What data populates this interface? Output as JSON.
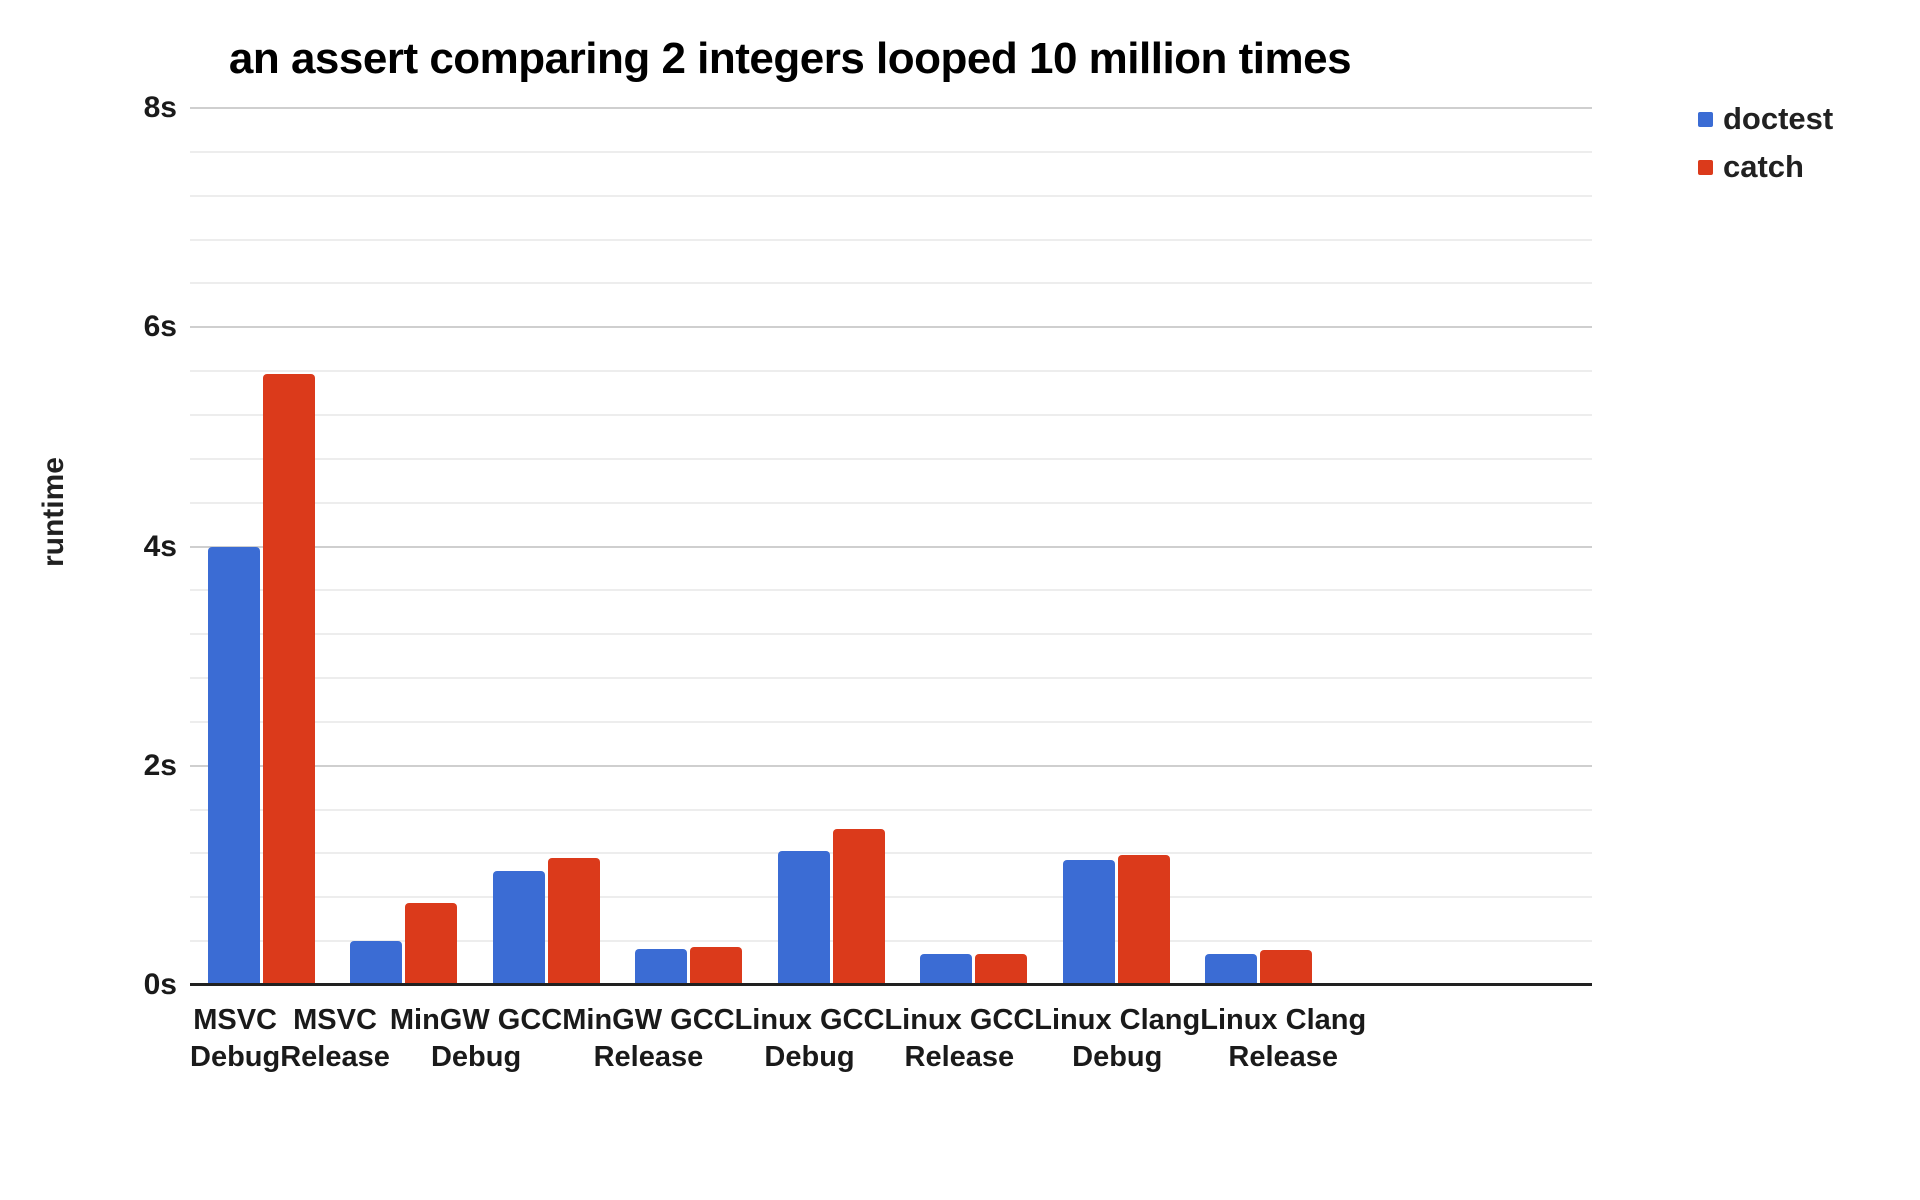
{
  "title": "an assert comparing 2 integers looped 10 million times",
  "y_axis_title": "runtime",
  "legend": [
    {
      "label": "doctest",
      "color": "#3B6CD4"
    },
    {
      "label": "catch",
      "color": "#DB3A1B"
    }
  ],
  "chart_data": {
    "type": "bar",
    "title": "an assert comparing 2 integers looped 10 million times",
    "xlabel": "",
    "ylabel": "runtime",
    "ylim": [
      0,
      8
    ],
    "y_unit": "s",
    "y_major_step": 2,
    "y_minor_step": 0.4,
    "grid": "on",
    "legend_position": "top-right",
    "categories": [
      "MSVC Debug",
      "MSVC Release",
      "MinGW GCC Debug",
      "MinGW GCC Release",
      "Linux GCC Debug",
      "Linux GCC Release",
      "Linux Clang Debug",
      "Linux Clang Release"
    ],
    "series": [
      {
        "name": "doctest",
        "color": "#3B6CD4",
        "values": [
          4.0,
          0.4,
          1.04,
          0.33,
          1.22,
          0.28,
          1.14,
          0.28
        ]
      },
      {
        "name": "catch",
        "color": "#DB3A1B",
        "values": [
          5.57,
          0.75,
          1.16,
          0.35,
          1.42,
          0.28,
          1.19,
          0.32
        ]
      }
    ],
    "yticks": [
      {
        "value": 0,
        "label": "0s"
      },
      {
        "value": 2,
        "label": "2s"
      },
      {
        "value": 4,
        "label": "4s"
      },
      {
        "value": 6,
        "label": "6s"
      },
      {
        "value": 8,
        "label": "8s"
      }
    ]
  }
}
